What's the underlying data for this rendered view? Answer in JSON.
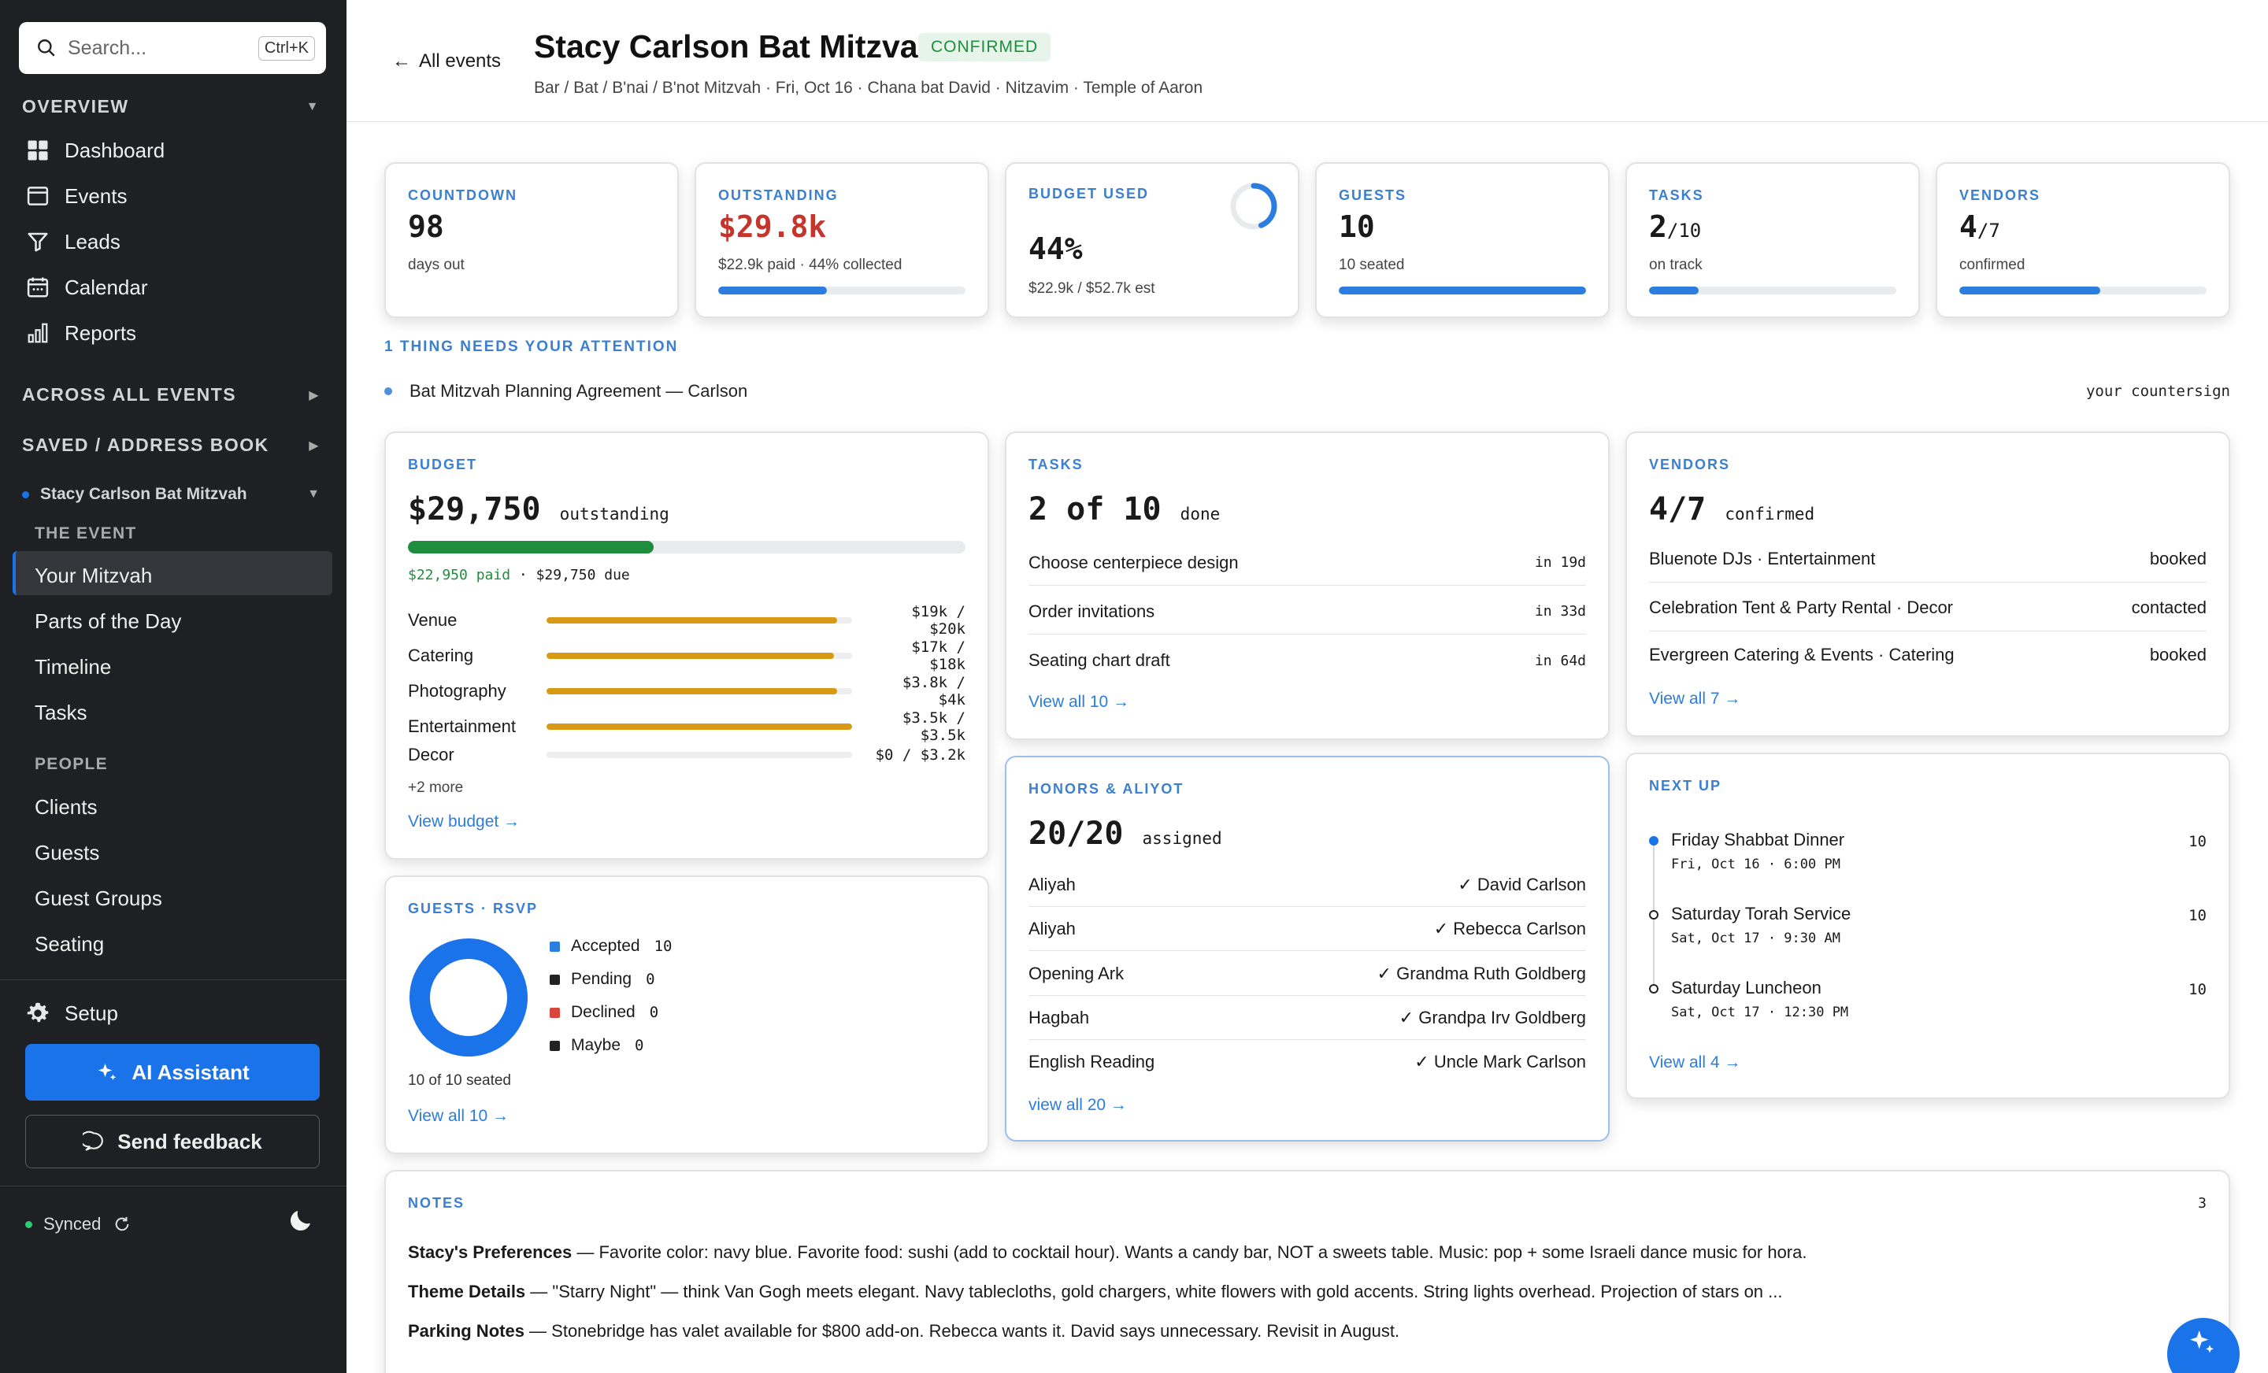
{
  "sidebar": {
    "search_placeholder": "Search...",
    "search_shortcut": "Ctrl+K",
    "overview_label": "OVERVIEW",
    "nav": [
      {
        "label": "Dashboard",
        "icon": "dashboard-icon"
      },
      {
        "label": "Events",
        "icon": "events-icon"
      },
      {
        "label": "Leads",
        "icon": "funnel-icon"
      },
      {
        "label": "Calendar",
        "icon": "calendar-icon"
      },
      {
        "label": "Reports",
        "icon": "bar-chart-icon"
      }
    ],
    "across_all_events": "ACROSS ALL EVENTS",
    "saved_address_book": "SAVED / ADDRESS BOOK",
    "current_event": "Stacy Carlson Bat Mitzvah",
    "the_event_label": "THE EVENT",
    "event_items": [
      "Your Mitzvah",
      "Parts of the Day",
      "Timeline",
      "Tasks"
    ],
    "people_label": "PEOPLE",
    "people_items": [
      "Clients",
      "Guests",
      "Guest Groups",
      "Seating"
    ],
    "setup": "Setup",
    "ai_assistant": "AI Assistant",
    "send_feedback": "Send feedback",
    "synced": "Synced"
  },
  "header": {
    "back": "All events",
    "title": "Stacy Carlson Bat Mitzvah",
    "status": "CONFIRMED",
    "subtitle": "Bar / Bat / B'nai / B'not Mitzvah · Fri, Oct 16 · Chana bat David · Nitzavim · Temple of Aaron"
  },
  "stats": {
    "countdown": {
      "label": "COUNTDOWN",
      "value": "98",
      "sub": "days out"
    },
    "outstanding": {
      "label": "OUTSTANDING",
      "value": "$29.8k",
      "sub": "$22.9k paid · 44% collected",
      "progress": 0.44
    },
    "budget_used": {
      "label": "BUDGET USED",
      "value": "44%",
      "sub": "$22.9k / $52.7k est",
      "progress": 0.44
    },
    "guests": {
      "label": "GUESTS",
      "value": "10",
      "sub": "10 seated",
      "progress": 1.0
    },
    "tasks": {
      "label": "TASKS",
      "value": "2",
      "denom": "/10",
      "sub": "on track",
      "progress": 0.2
    },
    "vendors": {
      "label": "VENDORS",
      "value": "4",
      "denom": "/7",
      "sub": "confirmed",
      "progress": 0.57
    }
  },
  "attention": {
    "heading": "1 THING NEEDS YOUR ATTENTION",
    "item": "Bat Mitzvah Planning Agreement — Carlson",
    "action": "your countersign"
  },
  "budget": {
    "label": "BUDGET",
    "amount": "$29,750",
    "amount_suffix": "outstanding",
    "progress": 0.44,
    "paid": "$22,950 paid",
    "sep": " · ",
    "due": "$29,750 due",
    "lines": [
      {
        "name": "Venue",
        "value": "$19k / $20k",
        "ratio": 0.95
      },
      {
        "name": "Catering",
        "value": "$17k / $18k",
        "ratio": 0.94
      },
      {
        "name": "Photography",
        "value": "$3.8k / $4k",
        "ratio": 0.95
      },
      {
        "name": "Entertainment",
        "value": "$3.5k / $3.5k",
        "ratio": 1.0
      },
      {
        "name": "Decor",
        "value": "$0 / $3.2k",
        "ratio": 0
      }
    ],
    "more": "+2 more",
    "link": "View budget →"
  },
  "guests_rsvp": {
    "label": "GUESTS · RSVP",
    "legend": [
      {
        "name": "Accepted",
        "count": "10",
        "color": "#2b7de0"
      },
      {
        "name": "Pending",
        "count": "0",
        "color": "#222222"
      },
      {
        "name": "Declined",
        "count": "0",
        "color": "#d9453b"
      },
      {
        "name": "Maybe",
        "count": "0",
        "color": "#222222"
      }
    ],
    "seated": "10 of 10 seated",
    "link": "View all 10 →"
  },
  "tasks": {
    "label": "TASKS",
    "big": "2 of 10",
    "suffix": "done",
    "items": [
      {
        "name": "Choose centerpiece design",
        "due": "in 19d"
      },
      {
        "name": "Order invitations",
        "due": "in 33d"
      },
      {
        "name": "Seating chart draft",
        "due": "in 64d"
      }
    ],
    "link": "View all 10 →"
  },
  "honors": {
    "label": "HONORS & ALIYOT",
    "big": "20/20",
    "suffix": "assigned",
    "items": [
      {
        "name": "Aliyah",
        "person": "✓ David Carlson"
      },
      {
        "name": "Aliyah",
        "person": "✓ Rebecca Carlson"
      },
      {
        "name": "Opening Ark",
        "person": "✓ Grandma Ruth Goldberg"
      },
      {
        "name": "Hagbah",
        "person": "✓ Grandpa Irv Goldberg"
      },
      {
        "name": "English Reading",
        "person": "✓ Uncle Mark Carlson"
      }
    ],
    "link": "view all 20 →"
  },
  "vendors": {
    "label": "VENDORS",
    "big": "4/7",
    "suffix": "confirmed",
    "items": [
      {
        "name": "Bluenote DJs · Entertainment",
        "status": "booked"
      },
      {
        "name": "Celebration Tent & Party Rental · Decor",
        "status": "contacted"
      },
      {
        "name": "Evergreen Catering & Events · Catering",
        "status": "booked"
      }
    ],
    "link": "View all 7 →"
  },
  "next_up": {
    "label": "NEXT UP",
    "items": [
      {
        "name": "Friday Shabbat Dinner",
        "date": "Fri, Oct 16 · 6:00 PM",
        "count": "10"
      },
      {
        "name": "Saturday Torah Service",
        "date": "Sat, Oct 17 · 9:30 AM",
        "count": "10"
      },
      {
        "name": "Saturday Luncheon",
        "date": "Sat, Oct 17 · 12:30 PM",
        "count": "10"
      }
    ],
    "link": "View all 4 →"
  },
  "notes": {
    "label": "NOTES",
    "count": "3",
    "items": [
      {
        "title": "Stacy's Preferences",
        "text": " — Favorite color: navy blue. Favorite food: sushi (add to cocktail hour). Wants a candy bar, NOT a sweets table. Music: pop + some Israeli dance music for hora."
      },
      {
        "title": "Theme Details",
        "text": " — \"Starry Night\" — think Van Gogh meets elegant. Navy tablecloths, gold chargers, white flowers with gold accents. String lights overhead. Projection of stars on ..."
      },
      {
        "title": "Parking Notes",
        "text": " — Stonebridge has valet available for $800 add-on. Rebecca wants it. David says unnecessary. Revisit in August."
      }
    ]
  },
  "colors": {
    "accent": "#1a73e8",
    "sidebar_bg": "#1f2023",
    "confirmed": "#1e8e3e",
    "outstanding": "#c5352b",
    "budget_bar": "#d89a15",
    "paid_bar": "#1e8e3e"
  }
}
